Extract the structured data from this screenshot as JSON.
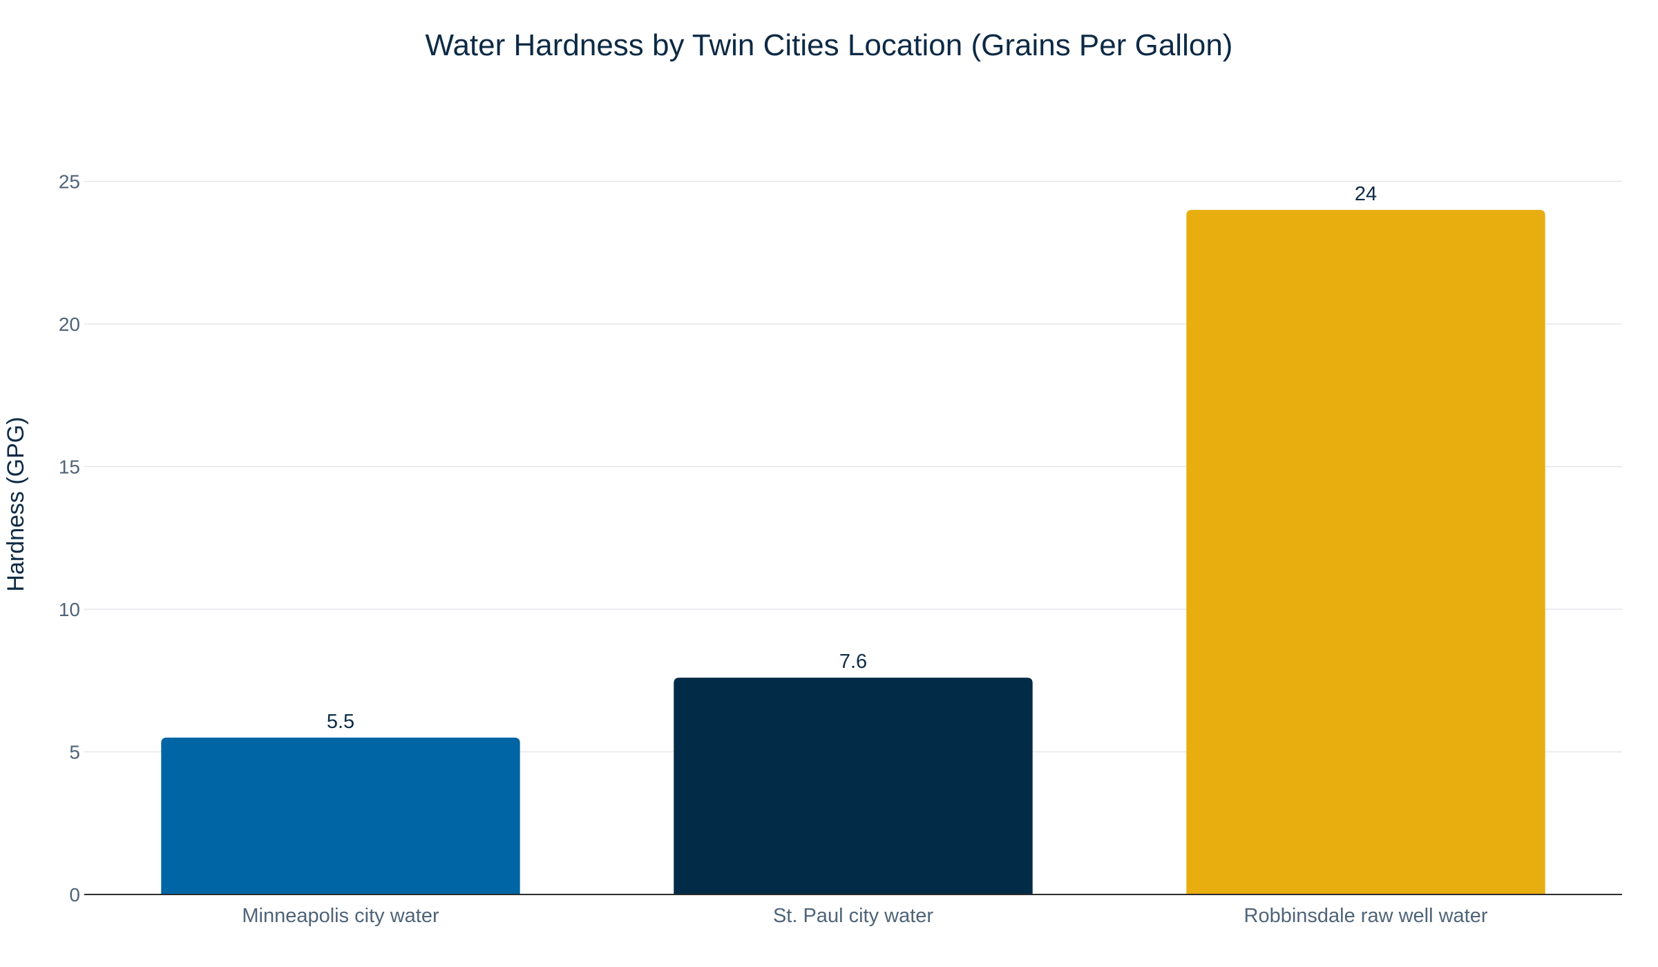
{
  "chart_data": {
    "type": "bar",
    "title": "Water Hardness by Twin Cities Location (Grains Per Gallon)",
    "xlabel": "",
    "ylabel": "Hardness (GPG)",
    "categories": [
      "Minneapolis city water",
      "St. Paul city water",
      "Robbinsdale raw well water"
    ],
    "values": [
      5.5,
      7.6,
      24
    ],
    "value_labels": [
      "5.5",
      "7.6",
      "24"
    ],
    "bar_colors": [
      "#0065a4",
      "#012b47",
      "#e8ae10"
    ],
    "ylim": [
      0,
      27
    ],
    "yticks": [
      0,
      5,
      10,
      15,
      20,
      25
    ],
    "grid": true,
    "legend": "none"
  }
}
